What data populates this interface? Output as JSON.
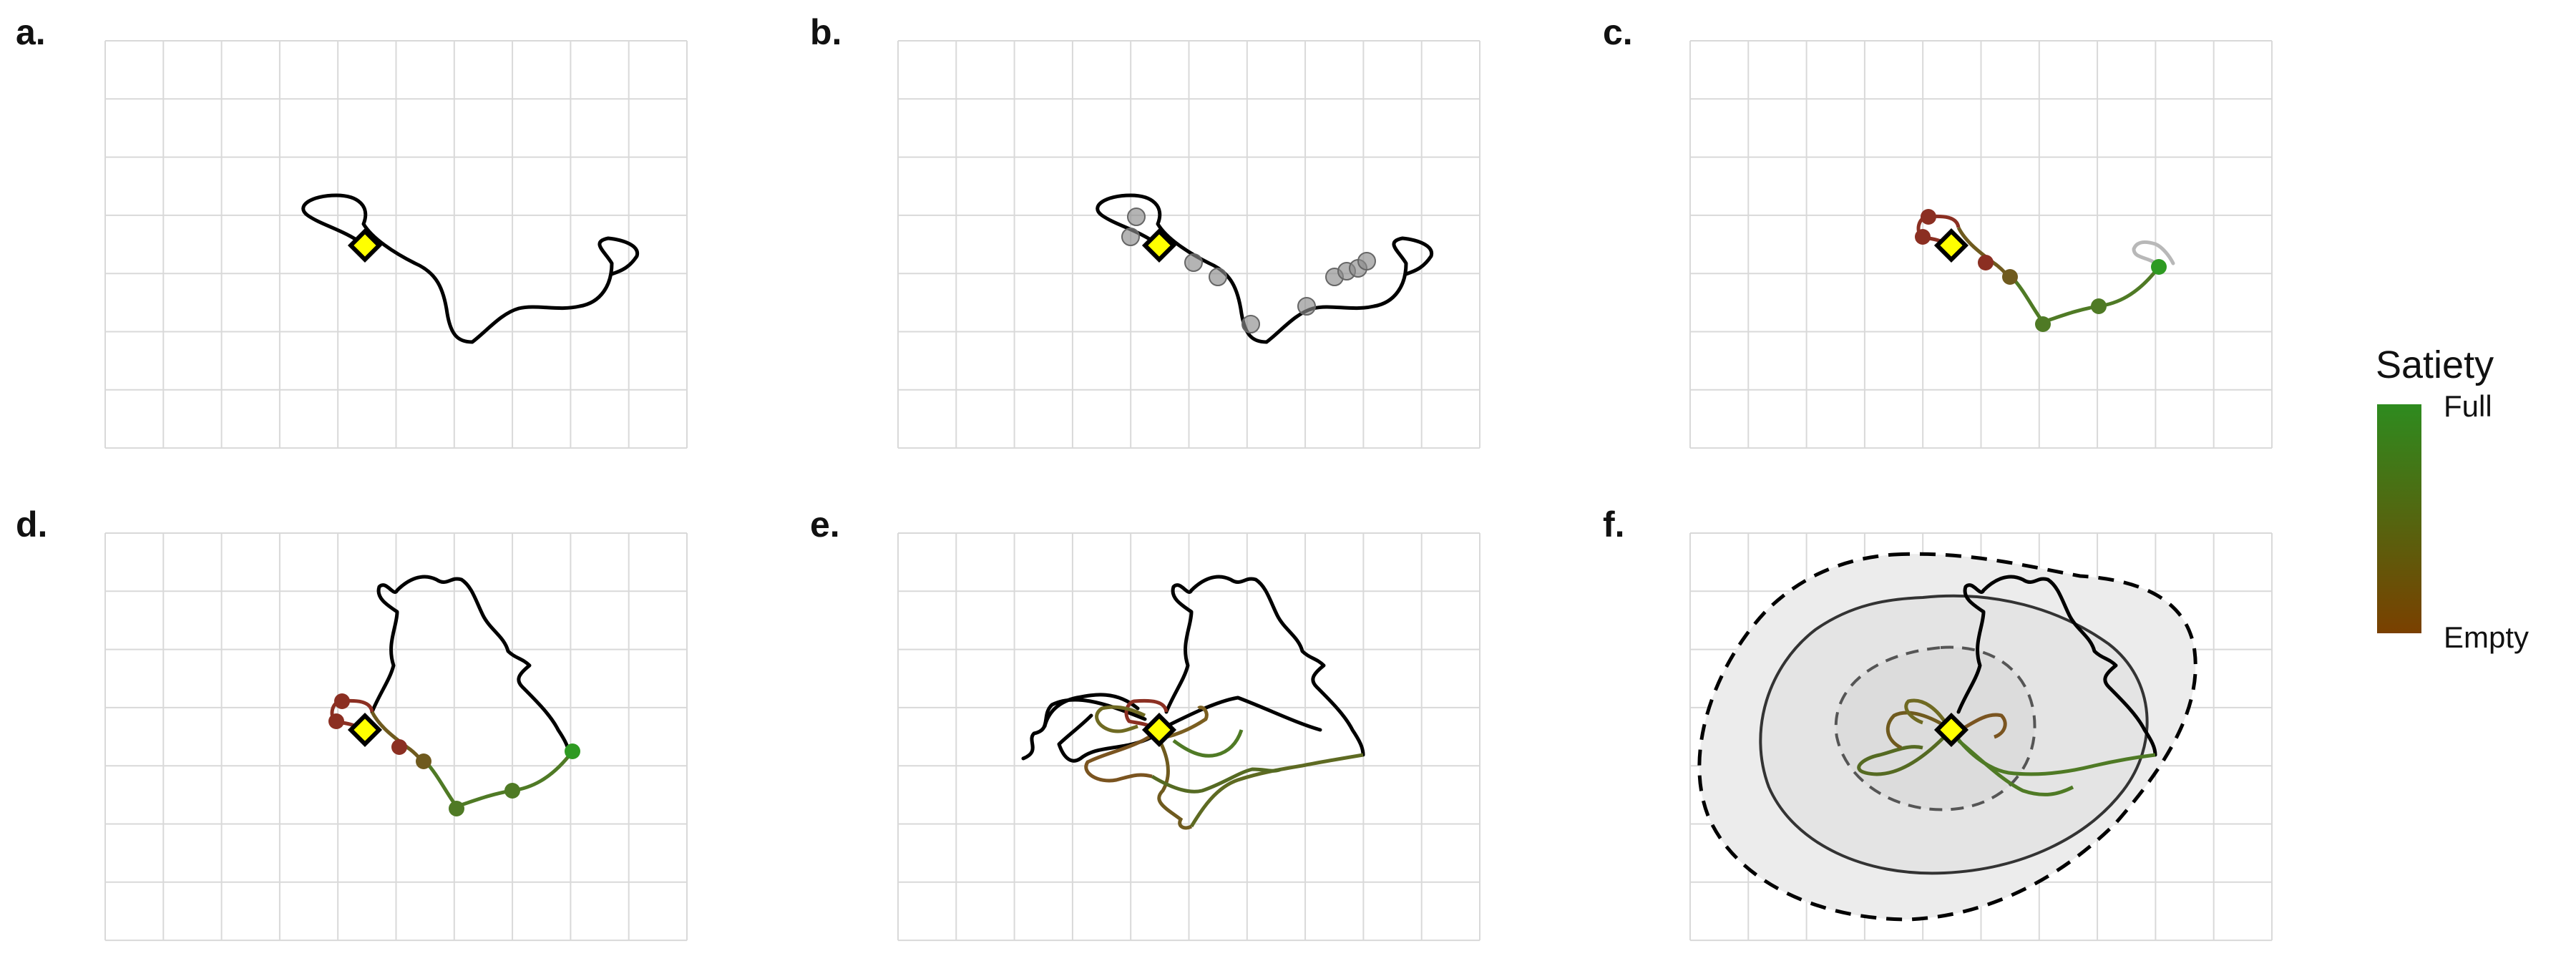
{
  "panels": [
    {
      "id": "a",
      "label": "a."
    },
    {
      "id": "b",
      "label": "b."
    },
    {
      "id": "c",
      "label": "c."
    },
    {
      "id": "d",
      "label": "d."
    },
    {
      "id": "e",
      "label": "e."
    },
    {
      "id": "f",
      "label": "f."
    }
  ],
  "legend": {
    "title": "Satiety",
    "top_label": "Full",
    "bottom_label": "Empty",
    "color_full": "#2e8b1f",
    "color_empty": "#7a4000"
  },
  "colors": {
    "path": "#000000",
    "path_muted": "#b8b8b8",
    "nest_marker": "#ffff00",
    "stop_point_grey": "#8c8c8c",
    "stop_red": "#8b2f22",
    "stop_brown": "#6f5a1e",
    "stop_green": "#4f7a25",
    "stop_bright_green": "#2e9a22",
    "home_range_fill": "#ececec",
    "core_area_fill": "#dcdcdc"
  },
  "icons": {
    "nest": "yellow-diamond-icon"
  }
}
